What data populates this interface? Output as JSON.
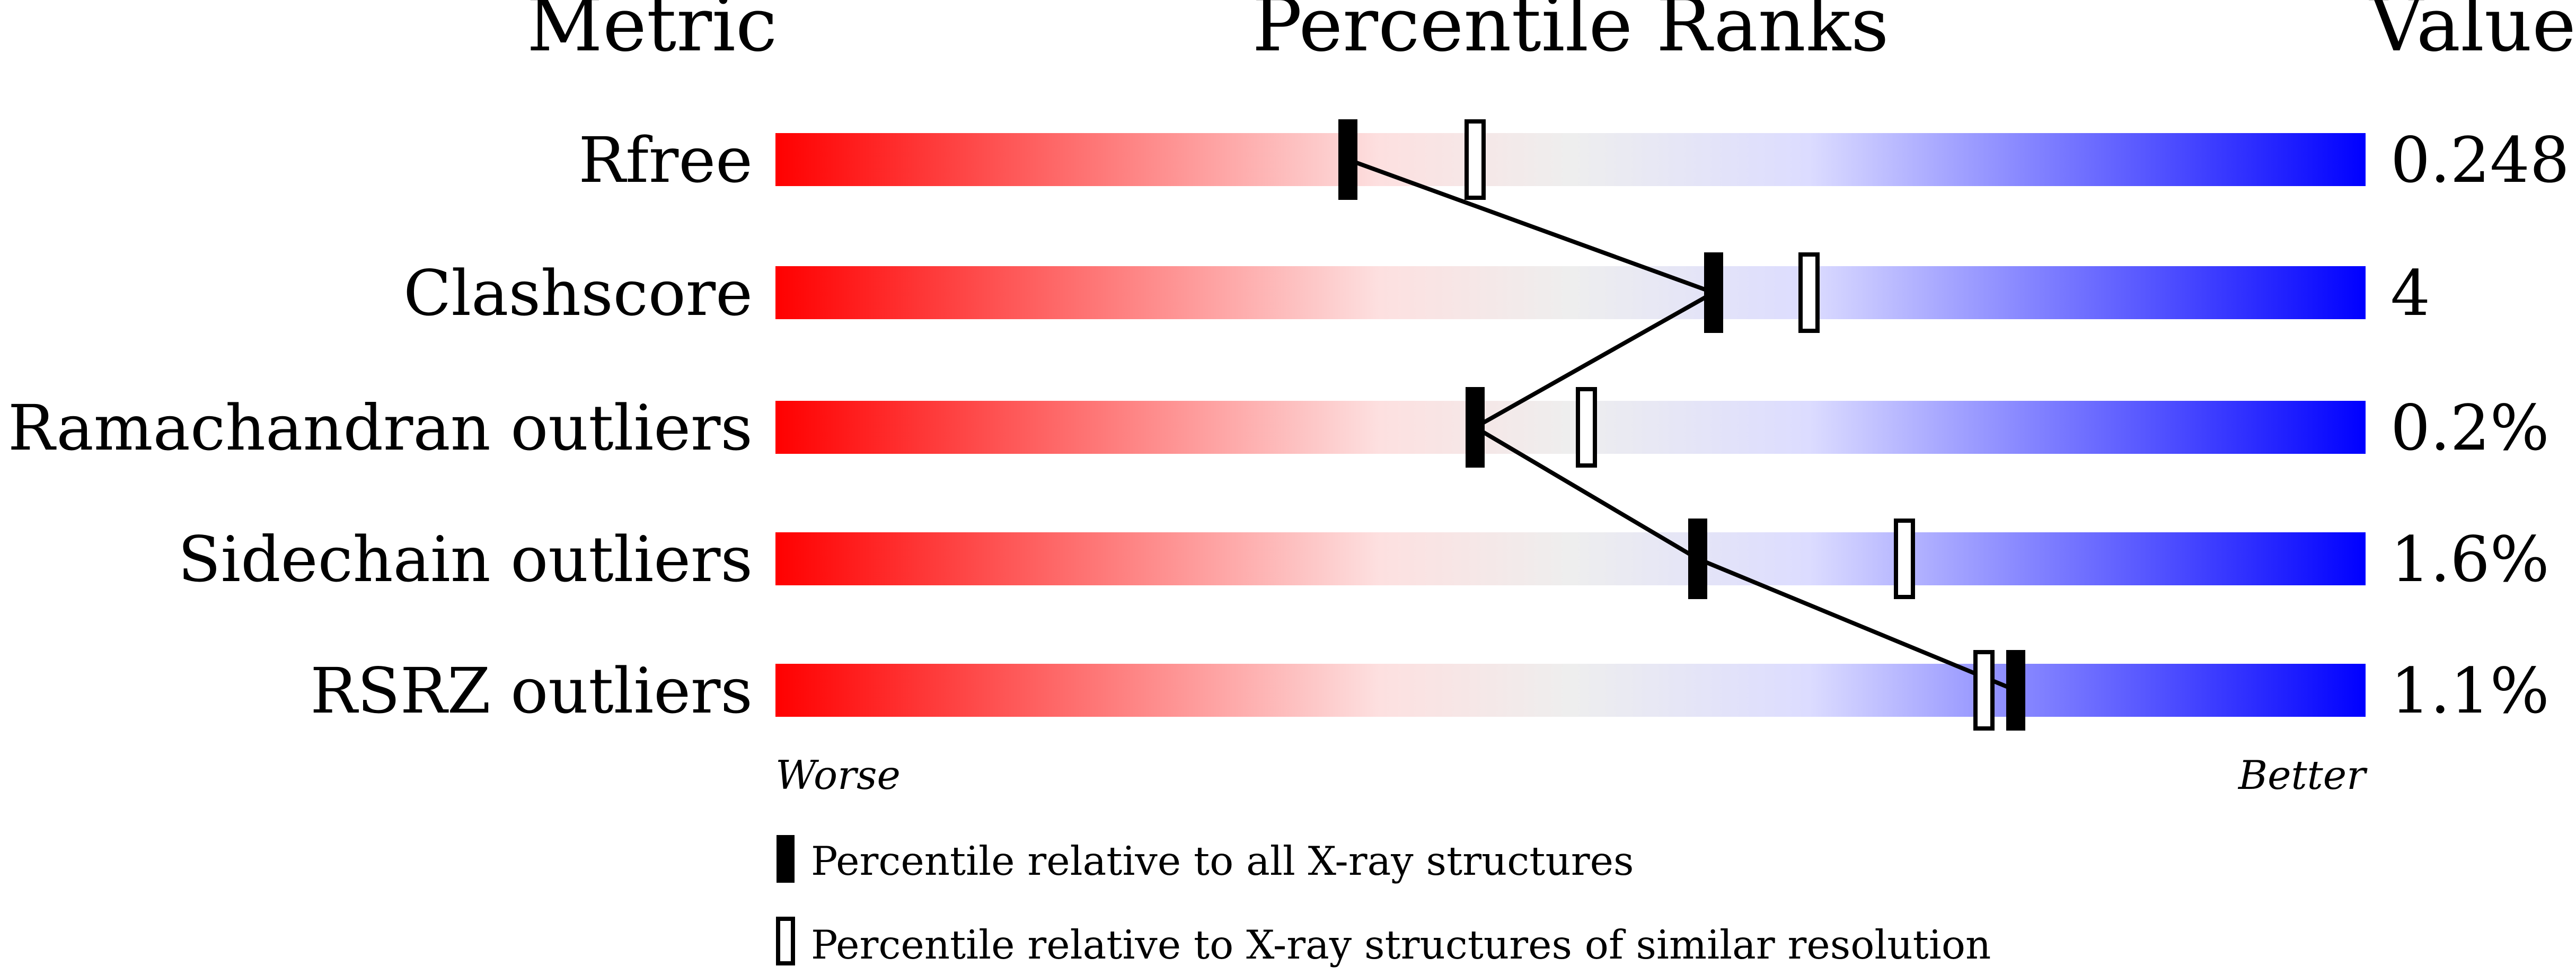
{
  "chart_data": {
    "type": "bar",
    "headers": {
      "metric": "Metric",
      "percentile": "Percentile Ranks",
      "value": "Value"
    },
    "categories": [
      "Rfree",
      "Clashscore",
      "Ramachandran outliers",
      "Sidechain outliers",
      "RSRZ outliers"
    ],
    "values_text": [
      "0.248",
      "4",
      "0.2%",
      "1.6%",
      "1.1%"
    ],
    "series": [
      {
        "name": "Percentile relative to all X-ray structures",
        "marker": "filled",
        "values": [
          36,
          59,
          44,
          58,
          78
        ]
      },
      {
        "name": "Percentile relative to X-ray structures of similar resolution",
        "marker": "open",
        "values": [
          44,
          65,
          51,
          71,
          76
        ]
      }
    ],
    "xlim": [
      0,
      100
    ],
    "axis_labels": {
      "left": "Worse",
      "right": "Better"
    },
    "gradient_colors": [
      "#ff0000",
      "#fde0e0",
      "#eeeeee",
      "#dcdcff",
      "#0000ff"
    ],
    "legend_position": "bottom"
  }
}
